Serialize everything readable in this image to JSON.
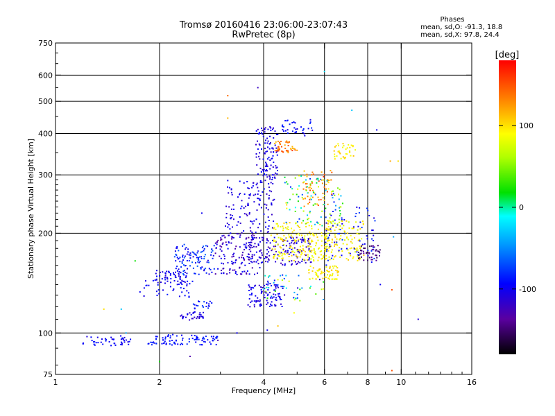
{
  "chart_data": {
    "type": "scatter",
    "title": "Tromsø 20160416 23:06:00-23:07:43",
    "subtitle": "RwPretec (8p)",
    "phases_box": {
      "heading": "Phases",
      "line_o": "mean, sd,O: -91.3, 18.8",
      "line_x": "mean, sd,X: 97.8, 24.4"
    },
    "xlabel": "Frequency [MHz]",
    "ylabel": "Stationary phase Virtual Height [km]",
    "x_scale": "log",
    "y_scale": "log",
    "xlim": [
      1,
      16
    ],
    "ylim": [
      75,
      750
    ],
    "x_ticks": [
      1,
      2,
      4,
      6,
      8,
      10,
      16
    ],
    "x_tick_labels": [
      "1",
      "2",
      "4",
      "6",
      "8",
      "10",
      "16"
    ],
    "x_grid": [
      2,
      4,
      6,
      8,
      10
    ],
    "y_ticks": [
      75,
      100,
      200,
      300,
      400,
      500,
      600,
      750
    ],
    "y_tick_labels": [
      "75",
      "100",
      "200",
      "300",
      "400",
      "500",
      "600",
      "750"
    ],
    "y_grid": [
      100,
      200,
      300,
      400,
      500,
      600
    ],
    "grid": true,
    "colorbar": {
      "label": "[deg]",
      "range": [
        -180,
        180
      ],
      "ticks": [
        100,
        0,
        -100
      ],
      "tick_labels": [
        "100",
        "0",
        "-100"
      ]
    },
    "clusters": [
      {
        "x": [
          1.2,
          1.65
        ],
        "y": [
          91,
          98
        ],
        "phase": [
          -110,
          -85
        ],
        "n": 45
      },
      {
        "x": [
          1.85,
          2.95
        ],
        "y": [
          92,
          99
        ],
        "phase": [
          -100,
          -80
        ],
        "n": 90
      },
      {
        "x": [
          1.95,
          2.4
        ],
        "y": [
          140,
          155
        ],
        "phase": [
          -115,
          -90
        ],
        "n": 55
      },
      {
        "x": [
          1.75,
          2.5
        ],
        "y": [
          128,
          145
        ],
        "phase": [
          -110,
          -85
        ],
        "n": 35
      },
      {
        "x": [
          2.2,
          2.9
        ],
        "y": [
          150,
          185
        ],
        "phase": [
          -110,
          -60
        ],
        "n": 110
      },
      {
        "x": [
          2.3,
          2.7
        ],
        "y": [
          109,
          116
        ],
        "phase": [
          -120,
          -95
        ],
        "n": 35
      },
      {
        "x": [
          2.5,
          2.85
        ],
        "y": [
          118,
          125
        ],
        "phase": [
          -100,
          -75
        ],
        "n": 20
      },
      {
        "x": [
          2.9,
          3.9
        ],
        "y": [
          150,
          200
        ],
        "phase": [
          -140,
          -90
        ],
        "n": 140
      },
      {
        "x": [
          3.1,
          4.3
        ],
        "y": [
          200,
          290
        ],
        "phase": [
          -120,
          -90
        ],
        "n": 130
      },
      {
        "x": [
          3.6,
          4.6
        ],
        "y": [
          120,
          140
        ],
        "phase": [
          -120,
          -90
        ],
        "n": 90
      },
      {
        "x": [
          3.5,
          5.5
        ],
        "y": [
          160,
          195
        ],
        "phase": [
          -130,
          -95
        ],
        "n": 160
      },
      {
        "x": [
          3.8,
          4.4
        ],
        "y": [
          290,
          420
        ],
        "phase": [
          -120,
          -90
        ],
        "n": 110
      },
      {
        "x": [
          4.3,
          5.0
        ],
        "y": [
          350,
          380
        ],
        "phase": [
          110,
          160
        ],
        "n": 45
      },
      {
        "x": [
          4.5,
          5.6
        ],
        "y": [
          390,
          440
        ],
        "phase": [
          -110,
          -80
        ],
        "n": 35
      },
      {
        "x": [
          4.2,
          6.2
        ],
        "y": [
          165,
          215
        ],
        "phase": [
          75,
          110
        ],
        "n": 200
      },
      {
        "x": [
          5.4,
          6.6
        ],
        "y": [
          145,
          160
        ],
        "phase": [
          80,
          110
        ],
        "n": 70
      },
      {
        "x": [
          5.2,
          6.3
        ],
        "y": [
          240,
          310
        ],
        "phase": [
          100,
          160
        ],
        "n": 60
      },
      {
        "x": [
          6.4,
          7.4
        ],
        "y": [
          335,
          375
        ],
        "phase": [
          80,
          115
        ],
        "n": 35
      },
      {
        "x": [
          4.6,
          6.8
        ],
        "y": [
          210,
          300
        ],
        "phase": [
          -90,
          110
        ],
        "n": 110
      },
      {
        "x": [
          6.0,
          7.8
        ],
        "y": [
          165,
          220
        ],
        "phase": [
          70,
          110
        ],
        "n": 120
      },
      {
        "x": [
          7.5,
          8.7
        ],
        "y": [
          165,
          185
        ],
        "phase": [
          -160,
          -130
        ],
        "n": 45
      },
      {
        "x": [
          6.0,
          8.4
        ],
        "y": [
          160,
          240
        ],
        "phase": [
          -110,
          -70
        ],
        "n": 70
      },
      {
        "x": [
          4.0,
          6.0
        ],
        "y": [
          125,
          150
        ],
        "phase": [
          -110,
          90
        ],
        "n": 50
      }
    ],
    "outliers": [
      {
        "x": 3.15,
        "y": 520,
        "phase": 140
      },
      {
        "x": 3.15,
        "y": 445,
        "phase": 115
      },
      {
        "x": 3.85,
        "y": 550,
        "phase": -120
      },
      {
        "x": 6.0,
        "y": 615,
        "phase": -20
      },
      {
        "x": 7.2,
        "y": 470,
        "phase": -30
      },
      {
        "x": 8.5,
        "y": 410,
        "phase": -100
      },
      {
        "x": 9.3,
        "y": 330,
        "phase": 120
      },
      {
        "x": 9.8,
        "y": 330,
        "phase": 100
      },
      {
        "x": 9.5,
        "y": 195,
        "phase": -40
      },
      {
        "x": 9.4,
        "y": 135,
        "phase": 150
      },
      {
        "x": 9.4,
        "y": 77,
        "phase": 150
      },
      {
        "x": 11.2,
        "y": 110,
        "phase": -110
      },
      {
        "x": 1.38,
        "y": 118,
        "phase": 100
      },
      {
        "x": 1.55,
        "y": 118,
        "phase": -30
      },
      {
        "x": 1.6,
        "y": 100,
        "phase": -40
      },
      {
        "x": 1.7,
        "y": 165,
        "phase": 20
      },
      {
        "x": 2.0,
        "y": 82,
        "phase": 20
      },
      {
        "x": 2.45,
        "y": 85,
        "phase": -130
      },
      {
        "x": 2.65,
        "y": 230,
        "phase": -100
      },
      {
        "x": 2.95,
        "y": 95,
        "phase": -130
      },
      {
        "x": 3.35,
        "y": 100,
        "phase": -100
      },
      {
        "x": 4.1,
        "y": 102,
        "phase": -100
      },
      {
        "x": 4.4,
        "y": 105,
        "phase": 110
      },
      {
        "x": 4.9,
        "y": 115,
        "phase": 90
      },
      {
        "x": 8.3,
        "y": 190,
        "phase": -90
      },
      {
        "x": 8.7,
        "y": 140,
        "phase": -100
      }
    ]
  }
}
